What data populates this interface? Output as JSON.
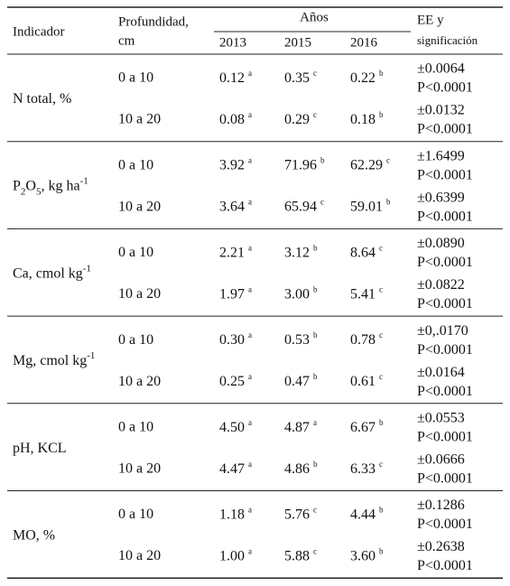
{
  "table": {
    "header": {
      "indicator": "Indicador",
      "depth": [
        "Profundidad,",
        "cm"
      ],
      "years_title": "Años",
      "years": [
        "2013",
        "2015",
        "2016"
      ],
      "ee": [
        "EE y",
        "significación"
      ]
    },
    "groups": [
      {
        "indicator": [
          {
            "text": "N total, %"
          }
        ],
        "rows": [
          {
            "depth": "0 a 10",
            "values": [
              {
                "v": "0.12",
                "sig": "a"
              },
              {
                "v": "0.35",
                "sig": "c"
              },
              {
                "v": "0.22",
                "sig": "b"
              }
            ],
            "ee": [
              "±0.0064",
              "P<0.0001"
            ]
          },
          {
            "depth": "10 a 20",
            "values": [
              {
                "v": "0.08",
                "sig": "a"
              },
              {
                "v": "0.29",
                "sig": "c"
              },
              {
                "v": "0.18",
                "sig": "b"
              }
            ],
            "ee": [
              "±0.0132",
              "P<0.0001"
            ]
          }
        ]
      },
      {
        "indicator": [
          {
            "text": "P"
          },
          {
            "sub": "2"
          },
          {
            "text": "O"
          },
          {
            "sub": "5"
          },
          {
            "text": ", kg ha"
          },
          {
            "sup": "-1"
          }
        ],
        "rows": [
          {
            "depth": "0 a 10",
            "values": [
              {
                "v": "3.92",
                "sig": "a"
              },
              {
                "v": "71.96",
                "sig": "b"
              },
              {
                "v": "62.29",
                "sig": "c"
              }
            ],
            "ee": [
              "±1.6499",
              "P<0.0001"
            ]
          },
          {
            "depth": "10 a 20",
            "values": [
              {
                "v": "3.64",
                "sig": "a"
              },
              {
                "v": "65.94",
                "sig": "c"
              },
              {
                "v": "59.01",
                "sig": "b"
              }
            ],
            "ee": [
              "±0.6399",
              "P<0.0001"
            ]
          }
        ]
      },
      {
        "indicator": [
          {
            "text": "Ca, cmol kg"
          },
          {
            "sup": "-1"
          }
        ],
        "rows": [
          {
            "depth": "0 a 10",
            "values": [
              {
                "v": "2.21",
                "sig": "a"
              },
              {
                "v": "3.12",
                "sig": "b"
              },
              {
                "v": "8.64",
                "sig": "c"
              }
            ],
            "ee": [
              "±0.0890",
              "P<0.0001"
            ]
          },
          {
            "depth": "10 a 20",
            "values": [
              {
                "v": "1.97",
                "sig": "a"
              },
              {
                "v": "3.00",
                "sig": "b"
              },
              {
                "v": "5.41",
                "sig": "c"
              }
            ],
            "ee": [
              "±0.0822",
              "P<0.0001"
            ]
          }
        ]
      },
      {
        "indicator": [
          {
            "text": "Mg, cmol kg"
          },
          {
            "sup": "-1"
          }
        ],
        "rows": [
          {
            "depth": "0 a 10",
            "values": [
              {
                "v": "0.30",
                "sig": "a"
              },
              {
                "v": "0.53",
                "sig": "b"
              },
              {
                "v": "0.78",
                "sig": "c"
              }
            ],
            "ee": [
              "±0,.0170",
              "P<0.0001"
            ]
          },
          {
            "depth": "10 a 20",
            "values": [
              {
                "v": "0.25",
                "sig": "a"
              },
              {
                "v": "0.47",
                "sig": "b"
              },
              {
                "v": "0.61",
                "sig": "c"
              }
            ],
            "ee": [
              "±0.0164",
              "P<0.0001"
            ]
          }
        ]
      },
      {
        "indicator": [
          {
            "text": "pH, KCL"
          }
        ],
        "rows": [
          {
            "depth": "0 a 10",
            "values": [
              {
                "v": "4.50",
                "sig": "a"
              },
              {
                "v": "4.87",
                "sig": "a"
              },
              {
                "v": "6.67",
                "sig": "b"
              }
            ],
            "ee": [
              "±0.0553",
              "P<0.0001"
            ]
          },
          {
            "depth": "10 a 20",
            "values": [
              {
                "v": "4.47",
                "sig": "a"
              },
              {
                "v": "4.86",
                "sig": "b"
              },
              {
                "v": "6.33",
                "sig": "c"
              }
            ],
            "ee": [
              "±0.0666",
              "P<0.0001"
            ]
          }
        ]
      },
      {
        "indicator": [
          {
            "text": "MO, %"
          }
        ],
        "rows": [
          {
            "depth": "0 a 10",
            "values": [
              {
                "v": "1.18",
                "sig": "a"
              },
              {
                "v": "5.76",
                "sig": "c"
              },
              {
                "v": "4.44",
                "sig": "b"
              }
            ],
            "ee": [
              "±0.1286",
              "P<0.0001"
            ]
          },
          {
            "depth": "10 a 20",
            "values": [
              {
                "v": "1.00",
                "sig": "a"
              },
              {
                "v": "5.88",
                "sig": "c"
              },
              {
                "v": "3.60",
                "sig": "b"
              }
            ],
            "ee": [
              "±0.2638",
              "P<0.0001"
            ]
          }
        ]
      }
    ]
  }
}
